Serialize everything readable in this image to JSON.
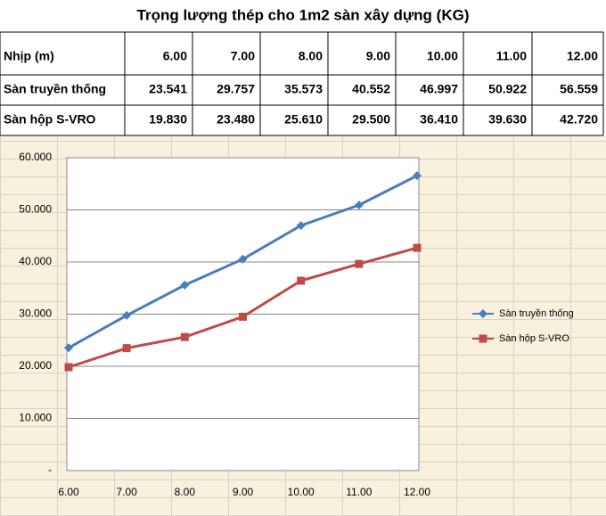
{
  "table": {
    "title": "Trọng lượng thép cho 1m2 sàn xây dựng (KG)",
    "header": [
      "Nhịp (m)",
      "6.00",
      "7.00",
      "8.00",
      "9.00",
      "10.00",
      "11.00",
      "12.00"
    ],
    "rows": [
      [
        "Sàn truyền thống",
        "23.541",
        "29.757",
        "35.573",
        "40.552",
        "46.997",
        "50.922",
        "56.559"
      ],
      [
        "Sàn hộp S-VRO",
        "19.830",
        "23.480",
        "25.610",
        "29.500",
        "36.410",
        "39.630",
        "42.720"
      ]
    ]
  },
  "chart_data": {
    "type": "line",
    "categories": [
      "6.00",
      "7.00",
      "8.00",
      "9.00",
      "10.00",
      "11.00",
      "12.00"
    ],
    "series": [
      {
        "name": "Sàn truyền thống",
        "color": "#4a7ebb",
        "marker": "diamond",
        "values": [
          23.541,
          29.757,
          35.573,
          40.552,
          46.997,
          50.922,
          56.559
        ]
      },
      {
        "name": "Sàn hộp S-VRO",
        "color": "#be4b48",
        "marker": "square",
        "values": [
          19.83,
          23.48,
          25.61,
          29.5,
          36.41,
          39.63,
          42.72
        ]
      }
    ],
    "ylim": [
      0,
      60
    ],
    "yticks": [
      {
        "value": 0,
        "label": "-"
      },
      {
        "value": 10,
        "label": "10.000"
      },
      {
        "value": 20,
        "label": "20.000"
      },
      {
        "value": 30,
        "label": "30.000"
      },
      {
        "value": 40,
        "label": "40.000"
      },
      {
        "value": 50,
        "label": "50.000"
      },
      {
        "value": 60,
        "label": "60.000"
      }
    ],
    "grid": true,
    "legend": "right"
  }
}
